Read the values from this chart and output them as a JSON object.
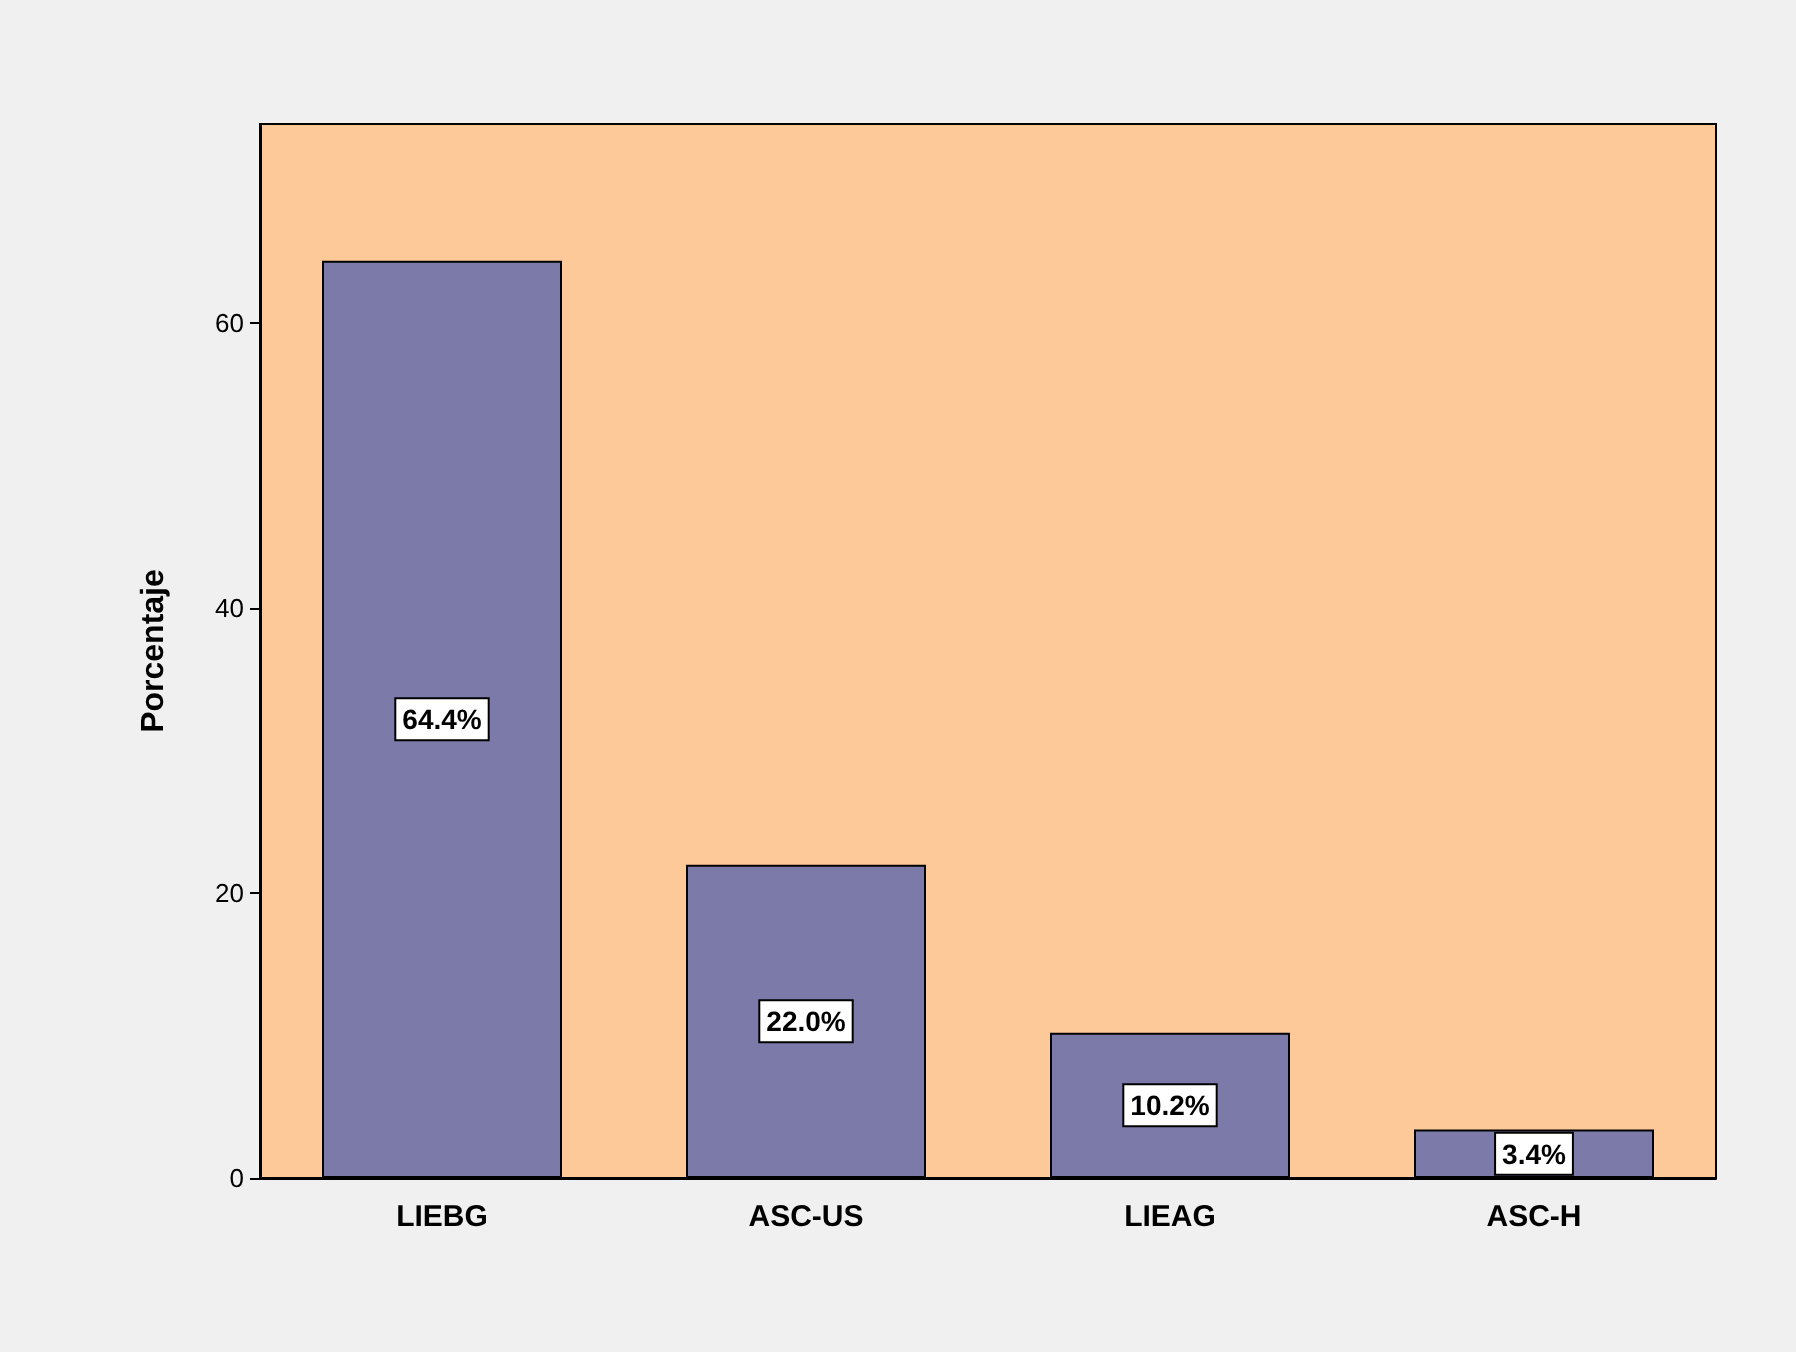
{
  "chart_data": {
    "type": "bar",
    "ylabel": "Porcentaje",
    "categories": [
      "LIEBG",
      "ASC-US",
      "LIEAG",
      "ASC-H"
    ],
    "values": [
      64.4,
      22.0,
      10.2,
      3.4
    ],
    "value_labels": [
      "64.4%",
      "22.0%",
      "10.2%",
      "3.4%"
    ],
    "color": "#7b7aa8",
    "ylim": [
      0,
      74
    ],
    "yticks": [
      0,
      20,
      40,
      60
    ]
  }
}
